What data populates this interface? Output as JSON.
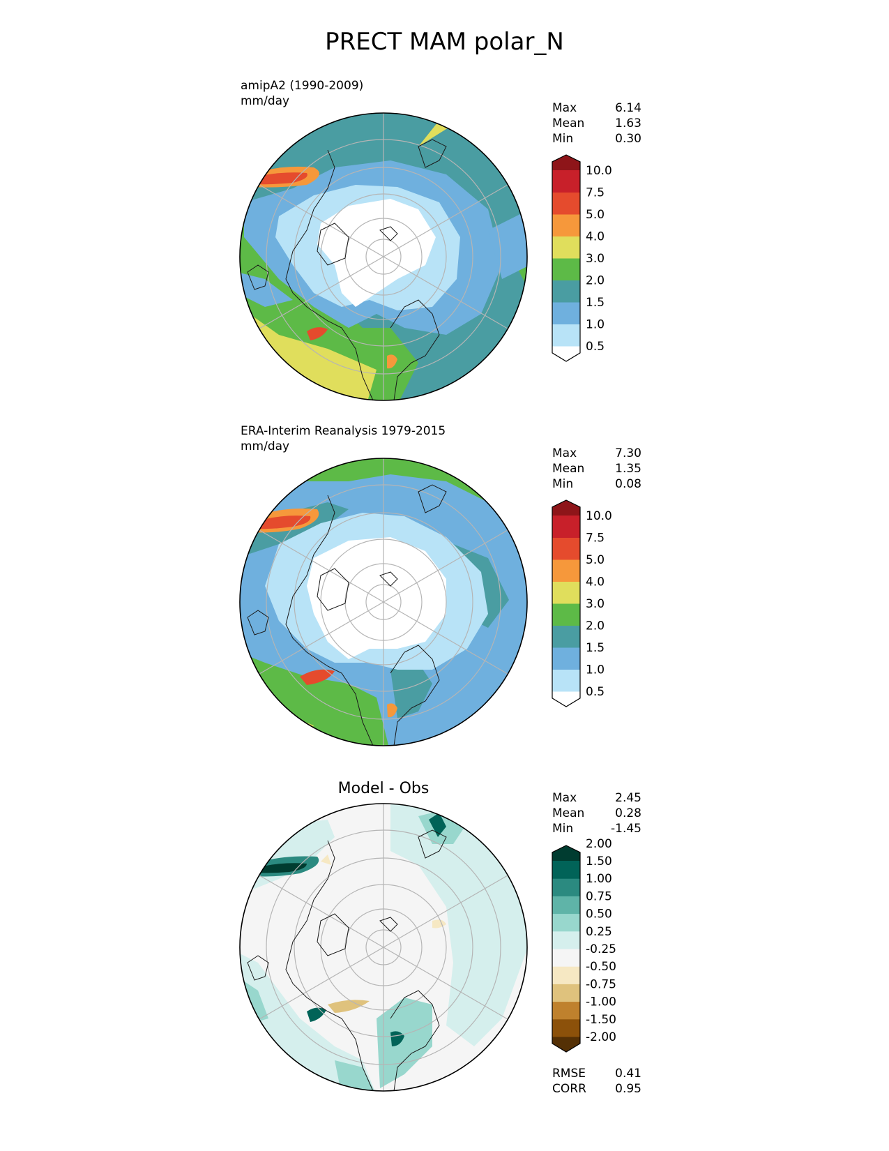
{
  "figure": {
    "title": "PRECT MAM polar_N"
  },
  "colors": {
    "seq": [
      "#ffffff",
      "#b8e3f7",
      "#6fb0de",
      "#4a9da2",
      "#5dba47",
      "#e0de5c",
      "#f6983b",
      "#e54b2d",
      "#c8202a",
      "#8e1519"
    ],
    "div": [
      "#543005",
      "#8c510a",
      "#bf812d",
      "#dfc27d",
      "#f6e8c3",
      "#f5f5f5",
      "#d5efed",
      "#98d7cd",
      "#5fb4a8",
      "#2b8a80",
      "#016358",
      "#003c30"
    ]
  },
  "panels": [
    {
      "id": "model",
      "label": "amipA2 (1990-2009)",
      "units": "mm/day",
      "stats": [
        {
          "name": "Max",
          "value": "6.14"
        },
        {
          "name": "Mean",
          "value": "1.63"
        },
        {
          "name": "Min",
          "value": "0.30"
        }
      ],
      "colorbar": {
        "palette": "seq",
        "levels": [
          "0.5",
          "1.0",
          "1.5",
          "2.0",
          "3.0",
          "4.0",
          "5.0",
          "7.5",
          "10.0"
        ]
      }
    },
    {
      "id": "obs",
      "label": "ERA-Interim Reanalysis 1979-2015",
      "units": "mm/day",
      "stats": [
        {
          "name": "Max",
          "value": "7.30"
        },
        {
          "name": "Mean",
          "value": "1.35"
        },
        {
          "name": "Min",
          "value": "0.08"
        }
      ],
      "colorbar": {
        "palette": "seq",
        "levels": [
          "0.5",
          "1.0",
          "1.5",
          "2.0",
          "3.0",
          "4.0",
          "5.0",
          "7.5",
          "10.0"
        ]
      }
    },
    {
      "id": "diff",
      "title": "Model - Obs",
      "stats": [
        {
          "name": "Max",
          "value": "2.45"
        },
        {
          "name": "Mean",
          "value": "0.28"
        },
        {
          "name": "Min",
          "value": "-1.45"
        }
      ],
      "metrics": [
        {
          "name": "RMSE",
          "value": "0.41"
        },
        {
          "name": "CORR",
          "value": "0.95"
        }
      ],
      "colorbar": {
        "palette": "div",
        "levels": [
          "-2.00",
          "-1.50",
          "-1.00",
          "-0.75",
          "-0.50",
          "-0.25",
          "0.25",
          "0.50",
          "0.75",
          "1.00",
          "1.50",
          "2.00"
        ]
      }
    }
  ]
}
